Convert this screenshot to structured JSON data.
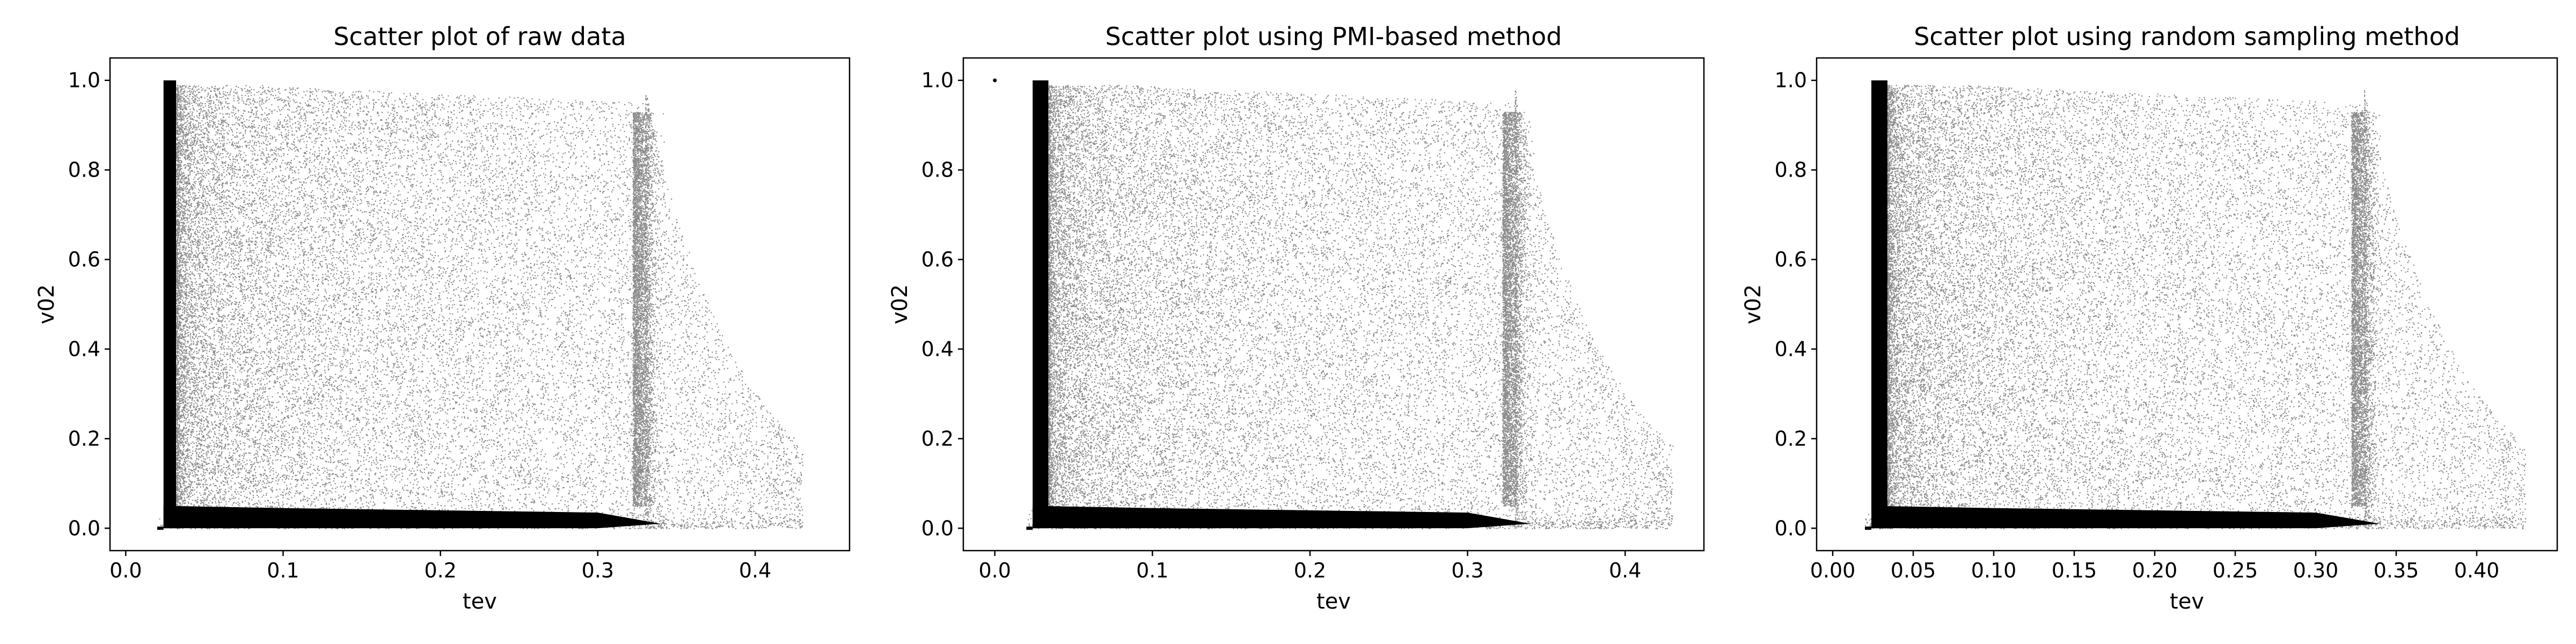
{
  "chart_data": [
    {
      "type": "scatter",
      "title": "Scatter plot of raw data",
      "xlabel": "tev",
      "ylabel": "v02",
      "xlim": [
        -0.01,
        0.46
      ],
      "ylim": [
        -0.05,
        1.05
      ],
      "xticks": [
        0.0,
        0.1,
        0.2,
        0.3,
        0.4
      ],
      "xtick_labels": [
        "0.0",
        "0.1",
        "0.2",
        "0.3",
        "0.4"
      ],
      "yticks": [
        0.0,
        0.2,
        0.4,
        0.6,
        0.8,
        1.0
      ],
      "ytick_labels": [
        "0.0",
        "0.2",
        "0.4",
        "0.6",
        "0.8",
        "1.0"
      ],
      "grid": false,
      "marker_color": "#000000",
      "x_range": [
        0.02,
        0.43
      ],
      "y_range": [
        0.0,
        1.0
      ],
      "dense_band_x": [
        0.024,
        0.032
      ],
      "right_edge_x": 0.33,
      "isolated_points": []
    },
    {
      "type": "scatter",
      "title": "Scatter plot using PMI-based method",
      "xlabel": "tev",
      "ylabel": "v02",
      "xlim": [
        -0.02,
        0.45
      ],
      "ylim": [
        -0.05,
        1.05
      ],
      "xticks": [
        0.0,
        0.1,
        0.2,
        0.3,
        0.4
      ],
      "xtick_labels": [
        "0.0",
        "0.1",
        "0.2",
        "0.3",
        "0.4"
      ],
      "yticks": [
        0.0,
        0.2,
        0.4,
        0.6,
        0.8,
        1.0
      ],
      "ytick_labels": [
        "0.0",
        "0.2",
        "0.4",
        "0.6",
        "0.8",
        "1.0"
      ],
      "grid": false,
      "marker_color": "#000000",
      "x_range": [
        0.02,
        0.43
      ],
      "y_range": [
        0.0,
        1.0
      ],
      "dense_band_x": [
        0.024,
        0.034
      ],
      "right_edge_x": 0.33,
      "isolated_points": [
        {
          "x": 0.0,
          "y": 1.0
        }
      ]
    },
    {
      "type": "scatter",
      "title": "Scatter plot using random sampling method",
      "xlabel": "tev",
      "ylabel": "v02",
      "xlim": [
        -0.01,
        0.45
      ],
      "ylim": [
        -0.05,
        1.05
      ],
      "xticks": [
        0.0,
        0.05,
        0.1,
        0.15,
        0.2,
        0.25,
        0.3,
        0.35,
        0.4
      ],
      "xtick_labels": [
        "0.00",
        "0.05",
        "0.10",
        "0.15",
        "0.20",
        "0.25",
        "0.30",
        "0.35",
        "0.40"
      ],
      "yticks": [
        0.0,
        0.2,
        0.4,
        0.6,
        0.8,
        1.0
      ],
      "ytick_labels": [
        "0.0",
        "0.2",
        "0.4",
        "0.6",
        "0.8",
        "1.0"
      ],
      "grid": false,
      "marker_color": "#000000",
      "x_range": [
        0.02,
        0.43
      ],
      "y_range": [
        0.0,
        1.0
      ],
      "dense_band_x": [
        0.024,
        0.034
      ],
      "right_edge_x": 0.33,
      "isolated_points": []
    }
  ]
}
